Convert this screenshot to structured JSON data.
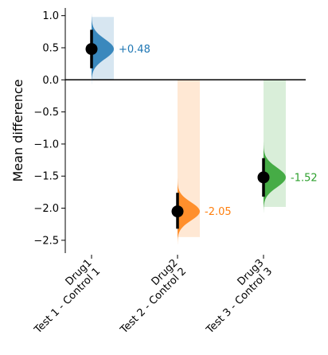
{
  "chart_data": {
    "type": "scatter",
    "ylabel": "Mean difference",
    "ylim": [
      -2.7,
      1.12
    ],
    "yticks": [
      1.0,
      0.5,
      0.0,
      -0.5,
      -1.0,
      -1.5,
      -2.0,
      -2.5
    ],
    "ytick_labels": [
      "1.0",
      "0.5",
      "0.0",
      "−0.5",
      "−1.0",
      "−1.5",
      "−2.0",
      "−2.5"
    ],
    "zero_line": true,
    "grid": false,
    "groups": [
      {
        "label_line1": "Drug1",
        "label_line2": "Test 1 - Control 1",
        "mean_difference": 0.48,
        "annotation": "+0.48",
        "ci_low": 0.18,
        "ci_high": 0.78,
        "bootstrap_min": 0.0,
        "bootstrap_max": 0.98,
        "color": "#1f77b4"
      },
      {
        "label_line1": "Drug2",
        "label_line2": "Test 2 - Control 2",
        "mean_difference": -2.05,
        "annotation": "-2.05",
        "ci_low": -2.32,
        "ci_high": -1.76,
        "bootstrap_min": -2.45,
        "bootstrap_max": 0.0,
        "color": "#ff7f0e"
      },
      {
        "label_line1": "Drug3",
        "label_line2": "Test 3 - Control 3",
        "mean_difference": -1.52,
        "annotation": "-1.52",
        "ci_low": -1.82,
        "ci_high": -1.22,
        "bootstrap_min": -1.98,
        "bootstrap_max": 0.0,
        "color": "#2ca02c"
      }
    ]
  }
}
